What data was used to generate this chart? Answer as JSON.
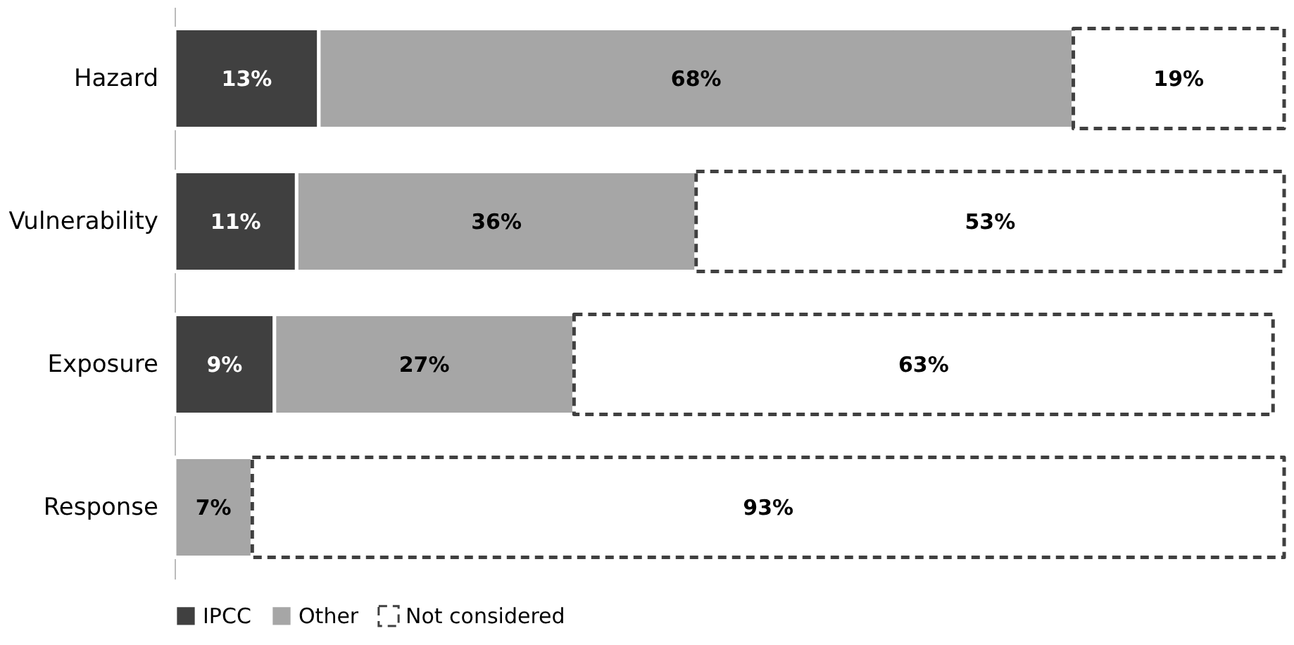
{
  "chart_data": {
    "type": "bar",
    "orientation": "horizontal",
    "stacked": true,
    "categories": [
      "Hazard",
      "Vulnerability",
      "Exposure",
      "Response"
    ],
    "series": [
      {
        "name": "IPCC",
        "color": "#404040",
        "values": [
          13,
          11,
          9,
          0
        ],
        "value_labels": [
          "13%",
          "11%",
          "9%",
          null
        ]
      },
      {
        "name": "Other",
        "color": "#a6a6a6",
        "values": [
          68,
          36,
          27,
          7
        ],
        "value_labels": [
          "68%",
          "36%",
          "27%",
          "7%"
        ]
      },
      {
        "name": "Not considered",
        "color": "#ffffff",
        "line_style": "dashed",
        "values": [
          19,
          53,
          63,
          93
        ],
        "value_labels": [
          "19%",
          "53%",
          "63%",
          "93%"
        ]
      }
    ],
    "legend": "bottom",
    "grid": false
  }
}
